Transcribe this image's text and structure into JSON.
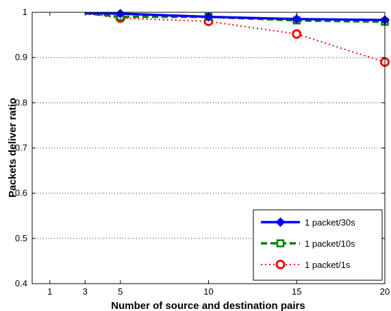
{
  "chart_data": {
    "type": "line",
    "title": "",
    "xlabel": "Number of source and destination pairs",
    "ylabel": "Packets deliver ratio",
    "xlim": [
      0,
      20
    ],
    "ylim": [
      0.4,
      1.0
    ],
    "xticks": [
      1,
      3,
      5,
      10,
      15,
      20
    ],
    "yticks": [
      0.4,
      0.5,
      0.6,
      0.7,
      0.8,
      0.9,
      1.0
    ],
    "ytick_labels": [
      "0.4",
      "0.5",
      "0.6",
      "0.7",
      "0.8",
      "0.9",
      "1"
    ],
    "grid": "y-dotted",
    "legend_position": "bottom-right",
    "series": [
      {
        "name": "1 packet/30s",
        "x": [
          3,
          5,
          10,
          15,
          20
        ],
        "y": [
          0.998,
          0.997,
          0.99,
          0.985,
          0.983
        ],
        "color": "#0000ff",
        "style": "solid",
        "marker": "diamond"
      },
      {
        "name": "1 packet/10s",
        "x": [
          3,
          5,
          10,
          15,
          20
        ],
        "y": [
          0.998,
          0.99,
          0.99,
          0.982,
          0.979
        ],
        "color": "#008000",
        "style": "dashed",
        "marker": "square"
      },
      {
        "name": "1 packet/1s",
        "x": [
          3,
          5,
          10,
          15,
          20
        ],
        "y": [
          0.998,
          0.987,
          0.98,
          0.952,
          0.89
        ],
        "color": "#ff0000",
        "style": "dotted",
        "marker": "circle"
      }
    ]
  }
}
